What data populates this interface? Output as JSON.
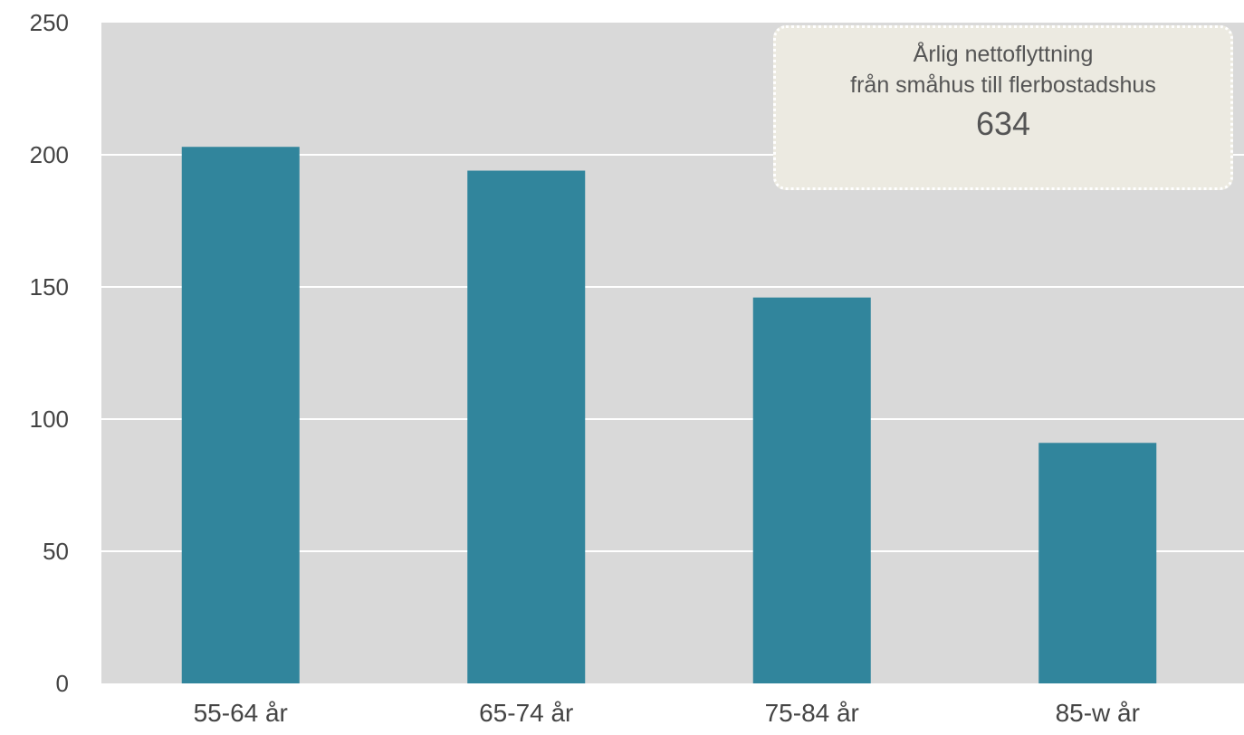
{
  "chart_data": {
    "type": "bar",
    "categories": [
      "55-64 år",
      "65-74 år",
      "75-84 år",
      "85-w år"
    ],
    "values": [
      203,
      194,
      146,
      91
    ],
    "ylim": [
      0,
      250
    ],
    "yticks": [
      0,
      50,
      100,
      150,
      200,
      250
    ],
    "grid": true,
    "colors": {
      "bar": "#31859c",
      "plot_bg": "#d9d9d9",
      "grid": "#ffffff",
      "callout_bg": "#eceae1"
    },
    "annotation": {
      "line1": "Årlig nettoflyttning",
      "line2": "från småhus till flerbostadshus",
      "value": "634",
      "placement": "top-right"
    }
  }
}
